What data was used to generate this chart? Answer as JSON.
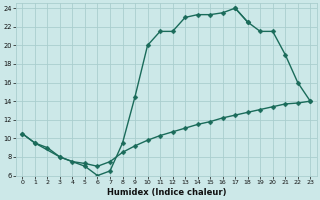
{
  "xlabel": "Humidex (Indice chaleur)",
  "bg_color": "#cce8e8",
  "grid_color": "#aacece",
  "line_color": "#1a6b5a",
  "xlim": [
    -0.5,
    23.5
  ],
  "ylim": [
    6,
    24.5
  ],
  "xticks": [
    0,
    1,
    2,
    3,
    4,
    5,
    6,
    7,
    8,
    9,
    10,
    11,
    12,
    13,
    14,
    15,
    16,
    17,
    18,
    19,
    20,
    21,
    22,
    23
  ],
  "yticks": [
    6,
    8,
    10,
    12,
    14,
    16,
    18,
    20,
    22,
    24
  ],
  "curve1_x": [
    0,
    1,
    3,
    5,
    6,
    7,
    8,
    9,
    10,
    11,
    12,
    13,
    14,
    15,
    16,
    17,
    18
  ],
  "curve1_y": [
    10.5,
    9.5,
    8.0,
    7.0,
    6.0,
    6.5,
    9.5,
    14.5,
    20.0,
    21.5,
    21.5,
    23.0,
    23.3,
    23.3,
    23.5,
    24.0,
    22.5
  ],
  "curve2_x": [
    17,
    18,
    19,
    20,
    21,
    22,
    23
  ],
  "curve2_y": [
    24.0,
    22.5,
    21.5,
    21.5,
    19.0,
    16.0,
    14.0
  ],
  "curve3_x": [
    0,
    1,
    2,
    3,
    4,
    5,
    6,
    7,
    8,
    9,
    10,
    11,
    12,
    13,
    14,
    15,
    16,
    17,
    18,
    19,
    20,
    21,
    22,
    23
  ],
  "curve3_y": [
    10.5,
    9.5,
    9.0,
    8.0,
    7.5,
    7.3,
    7.0,
    7.5,
    8.5,
    9.2,
    9.8,
    10.3,
    10.7,
    11.1,
    11.5,
    11.8,
    12.2,
    12.5,
    12.8,
    13.1,
    13.4,
    13.7,
    13.8,
    14.0
  ]
}
